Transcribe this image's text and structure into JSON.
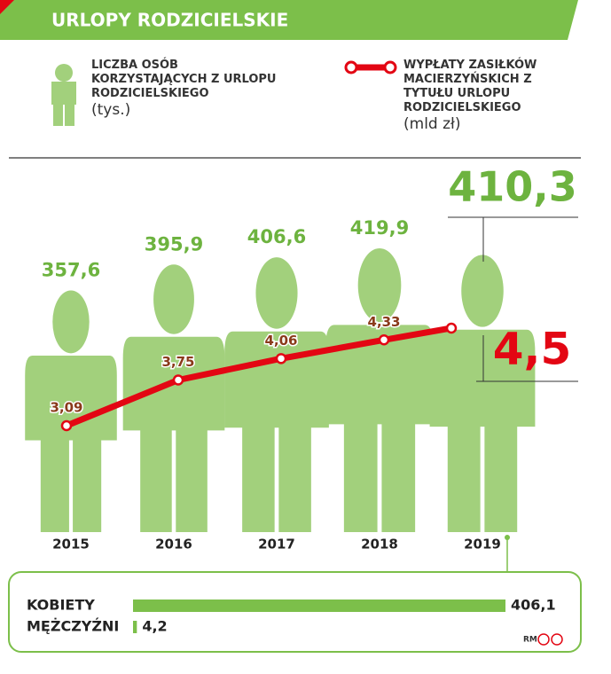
{
  "chart_data": [
    {
      "type": "bar",
      "mark_shape": "person",
      "title": "URLOPY RODZICIELSKIE",
      "categories": [
        "2015",
        "2016",
        "2017",
        "2018",
        "2019"
      ],
      "series": [
        {
          "name": "LICZBA OSÓB KORZYSTAJĄCYCH Z URLOPU RODZICIELSKIEGO",
          "unit": "(tys.)",
          "color": "#a2d07c",
          "values": [
            357.6,
            395.9,
            406.6,
            419.9,
            410.3
          ],
          "value_labels": [
            "357,6",
            "395,9",
            "406,6",
            "419,9",
            "410,3"
          ]
        },
        {
          "name": "WYPŁATY ZASIŁKÓW MACIERZYŃSKICH Z TYTUŁU URLOPU RODZICIELSKIEGO",
          "unit": "(mld zł)",
          "color": "#e30613",
          "axis": "y2",
          "values": [
            3.09,
            3.75,
            4.06,
            4.33,
            4.5
          ],
          "value_labels": [
            "3,09",
            "3,75",
            "4,06",
            "4,33",
            "4,5"
          ]
        }
      ]
    },
    {
      "type": "bar",
      "orientation": "horizontal",
      "color": "#7cbf4a",
      "categories": [
        "KOBIETY",
        "MĘŻCZYŹNI"
      ],
      "values": [
        406.1,
        4.2
      ],
      "value_labels": [
        "406,1",
        "4,2"
      ],
      "credit": "RM"
    }
  ]
}
